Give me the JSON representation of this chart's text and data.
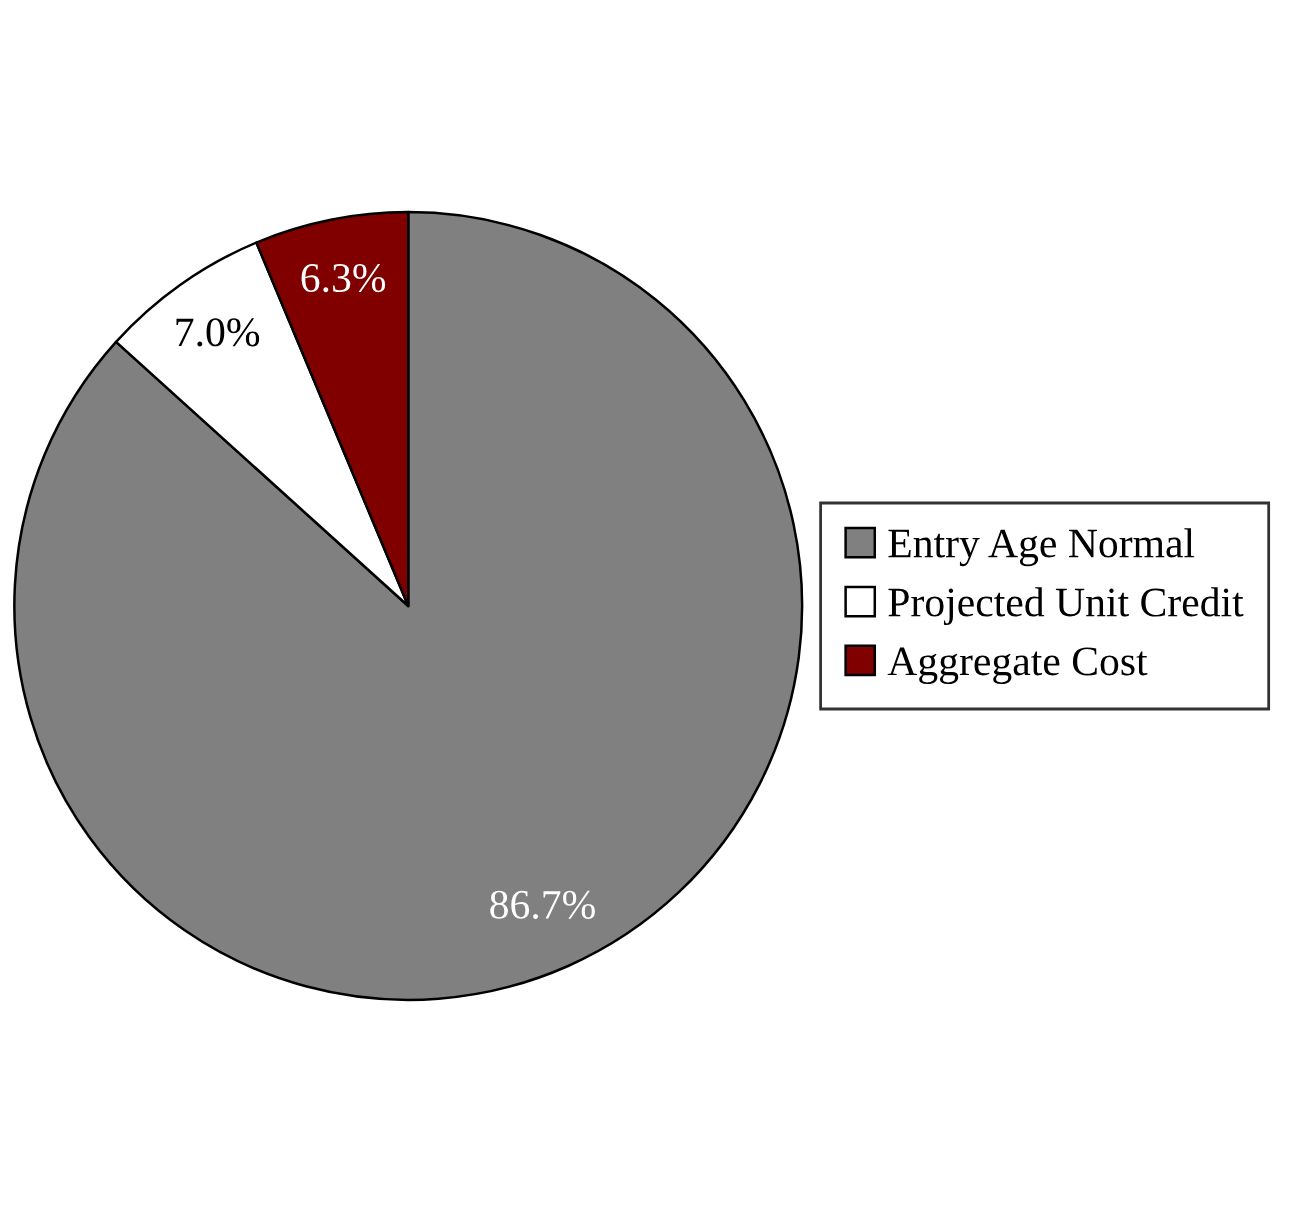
{
  "chart_data": {
    "type": "pie",
    "categories": [
      "Entry Age Normal",
      "Projected Unit Credit",
      "Aggregate Cost"
    ],
    "values": [
      86.7,
      7.0,
      6.3
    ],
    "colors": [
      "#808080",
      "#ffffff",
      "#800000"
    ],
    "value_labels": [
      "86.7%",
      "7.0%",
      "6.3%"
    ],
    "legend": "right"
  }
}
